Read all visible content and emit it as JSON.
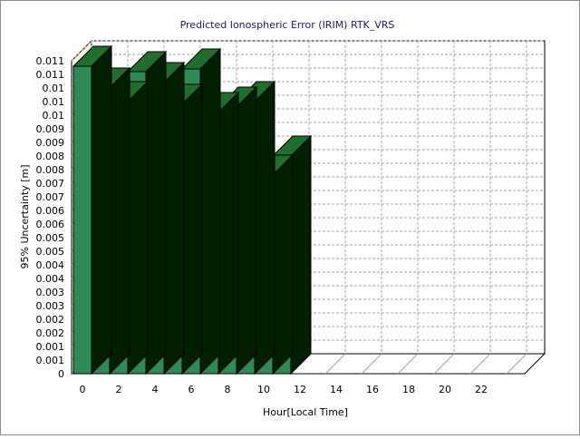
{
  "chart_data": {
    "type": "bar",
    "title": "Predicted Ionospheric Error (IRIM) RTK_VRS",
    "xlabel": "Hour[Local Time]",
    "ylabel": "95% Uncertainty [m]",
    "x_ticks": [
      "0",
      "2",
      "4",
      "6",
      "8",
      "10",
      "12",
      "14",
      "16",
      "18",
      "20",
      "22"
    ],
    "y_ticks": [
      "0",
      "0.001",
      "0.001",
      "0.002",
      "0.002",
      "0.003",
      "0.003",
      "0.004",
      "0.004",
      "0.005",
      "0.005",
      "0.006",
      "0.006",
      "0.007",
      "0.007",
      "0.008",
      "0.008",
      "0.009",
      "0.009",
      "0.01",
      "0.01",
      "0.01",
      "0.011",
      "0.011"
    ],
    "ylim": [
      0,
      0.0115
    ],
    "categories": [
      "0",
      "1",
      "2",
      "3",
      "4",
      "5",
      "6",
      "7",
      "8",
      "9",
      "10",
      "11",
      "12",
      "13",
      "14",
      "15",
      "16",
      "17",
      "18",
      "19",
      "20",
      "21",
      "22",
      "23"
    ],
    "values": [
      0.0113,
      0.0105,
      0.01,
      0.0111,
      0.0107,
      0.0099,
      0.0112,
      0.0096,
      0.0098,
      0.01,
      0.0073,
      0.008,
      null,
      null,
      null,
      null,
      null,
      null,
      null,
      null,
      null,
      null,
      null,
      null
    ],
    "grid": true,
    "bar_color": "#2e8b57",
    "bar_top_color": "#1e6e2c",
    "bar_side_color": "#001f00",
    "wall_color": "#fffde0"
  }
}
